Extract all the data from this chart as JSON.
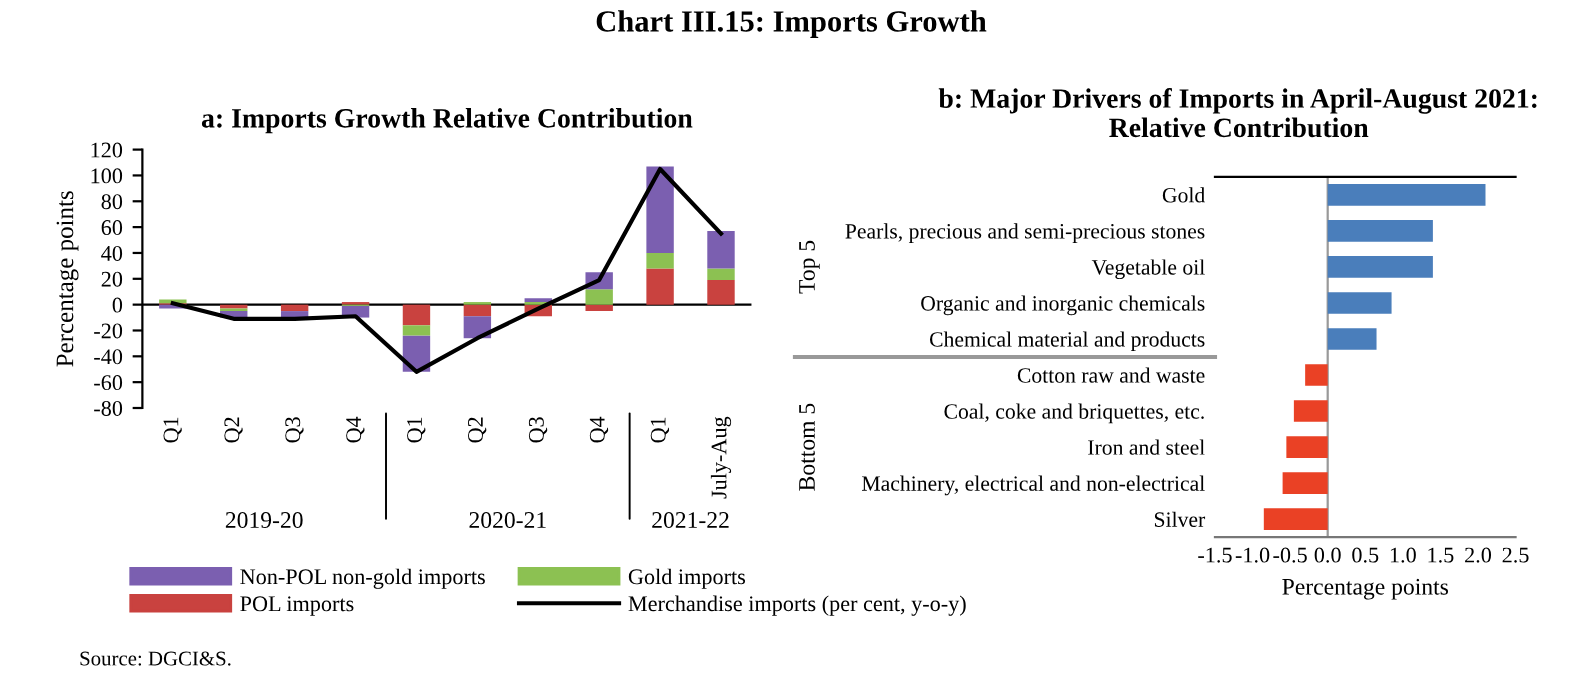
{
  "chart_data": [
    {
      "type": "bar",
      "title": "Chart III.15: Imports Growth",
      "subtitle": "a: Imports Growth Relative Contribution",
      "ylabel": "Percentage points",
      "categories": [
        "Q1",
        "Q2",
        "Q3",
        "Q4",
        "Q1",
        "Q2",
        "Q3",
        "Q4",
        "Q1",
        "July-Aug"
      ],
      "stacked": true,
      "series": [
        {
          "name": "POL imports",
          "color": "#c9423f",
          "values": [
            1,
            -3,
            -5,
            2,
            -16,
            -9,
            -9,
            -5,
            28,
            19
          ]
        },
        {
          "name": "Gold imports",
          "color": "#8cc152",
          "values": [
            3,
            -2,
            0,
            -1,
            -8,
            2,
            2,
            12,
            12,
            9
          ]
        },
        {
          "name": "Non-POL non-gold imports",
          "color": "#7b5fb0",
          "values": [
            -3,
            -5,
            -5,
            -9,
            -28,
            -17,
            3,
            13,
            67,
            29
          ]
        },
        {
          "name": "Merchandise imports (per cent, y-o-y)",
          "type": "line",
          "color": "#000000",
          "values": [
            1,
            -11,
            -11,
            -9,
            -52,
            -26,
            -3,
            19,
            105,
            55
          ]
        }
      ],
      "ylim": [
        -80,
        120
      ],
      "yticks": [
        -80,
        -60,
        -40,
        -20,
        0,
        20,
        40,
        60,
        80,
        100,
        120
      ],
      "legend": "bottom",
      "grid": false,
      "ref_lines": [
        {
          "axis": "y",
          "value": 0,
          "color": "#000000"
        }
      ],
      "annotations": [
        "2019-20",
        "2020-21",
        "2021-22",
        "Source: DGCI&S."
      ]
    },
    {
      "type": "bar",
      "orientation": "horizontal",
      "title": "b: Major Drivers of Imports in April-August 2021: Relative Contribution",
      "xlabel": "Percentage points",
      "categories": [
        "Gold",
        "Pearls, precious and semi-precious stones",
        "Vegetable oil",
        "Organic and inorganic chemicals",
        "Chemical material and products",
        "Cotton raw and waste",
        "Coal, coke and briquettes, etc.",
        "Iron and steel",
        "Machinery, electrical and non-electrical",
        "Silver"
      ],
      "values": [
        2.1,
        1.4,
        1.4,
        0.85,
        0.65,
        -0.3,
        -0.45,
        -0.55,
        -0.6,
        -0.85
      ],
      "colors": [
        "#4a7ebb",
        "#4a7ebb",
        "#4a7ebb",
        "#4a7ebb",
        "#4a7ebb",
        "#ea4125",
        "#ea4125",
        "#ea4125",
        "#ea4125",
        "#ea4125"
      ],
      "xlim": [
        -1.5,
        2.5
      ],
      "xticks": [
        -1.5,
        {
          "value": -1.0,
          "label": "-1.0"
        },
        -0.5,
        {
          "value": 0,
          "label": "0.0"
        },
        0.5,
        {
          "value": 1,
          "label": "1.0"
        },
        1.5,
        {
          "value": 2,
          "label": "2.0"
        },
        2.5
      ],
      "grid": false,
      "ref_lines": [
        {
          "axis": "x",
          "value": 0,
          "color": "#999999"
        }
      ],
      "annotations": [
        "Top 5",
        "Bottom 5"
      ]
    }
  ]
}
